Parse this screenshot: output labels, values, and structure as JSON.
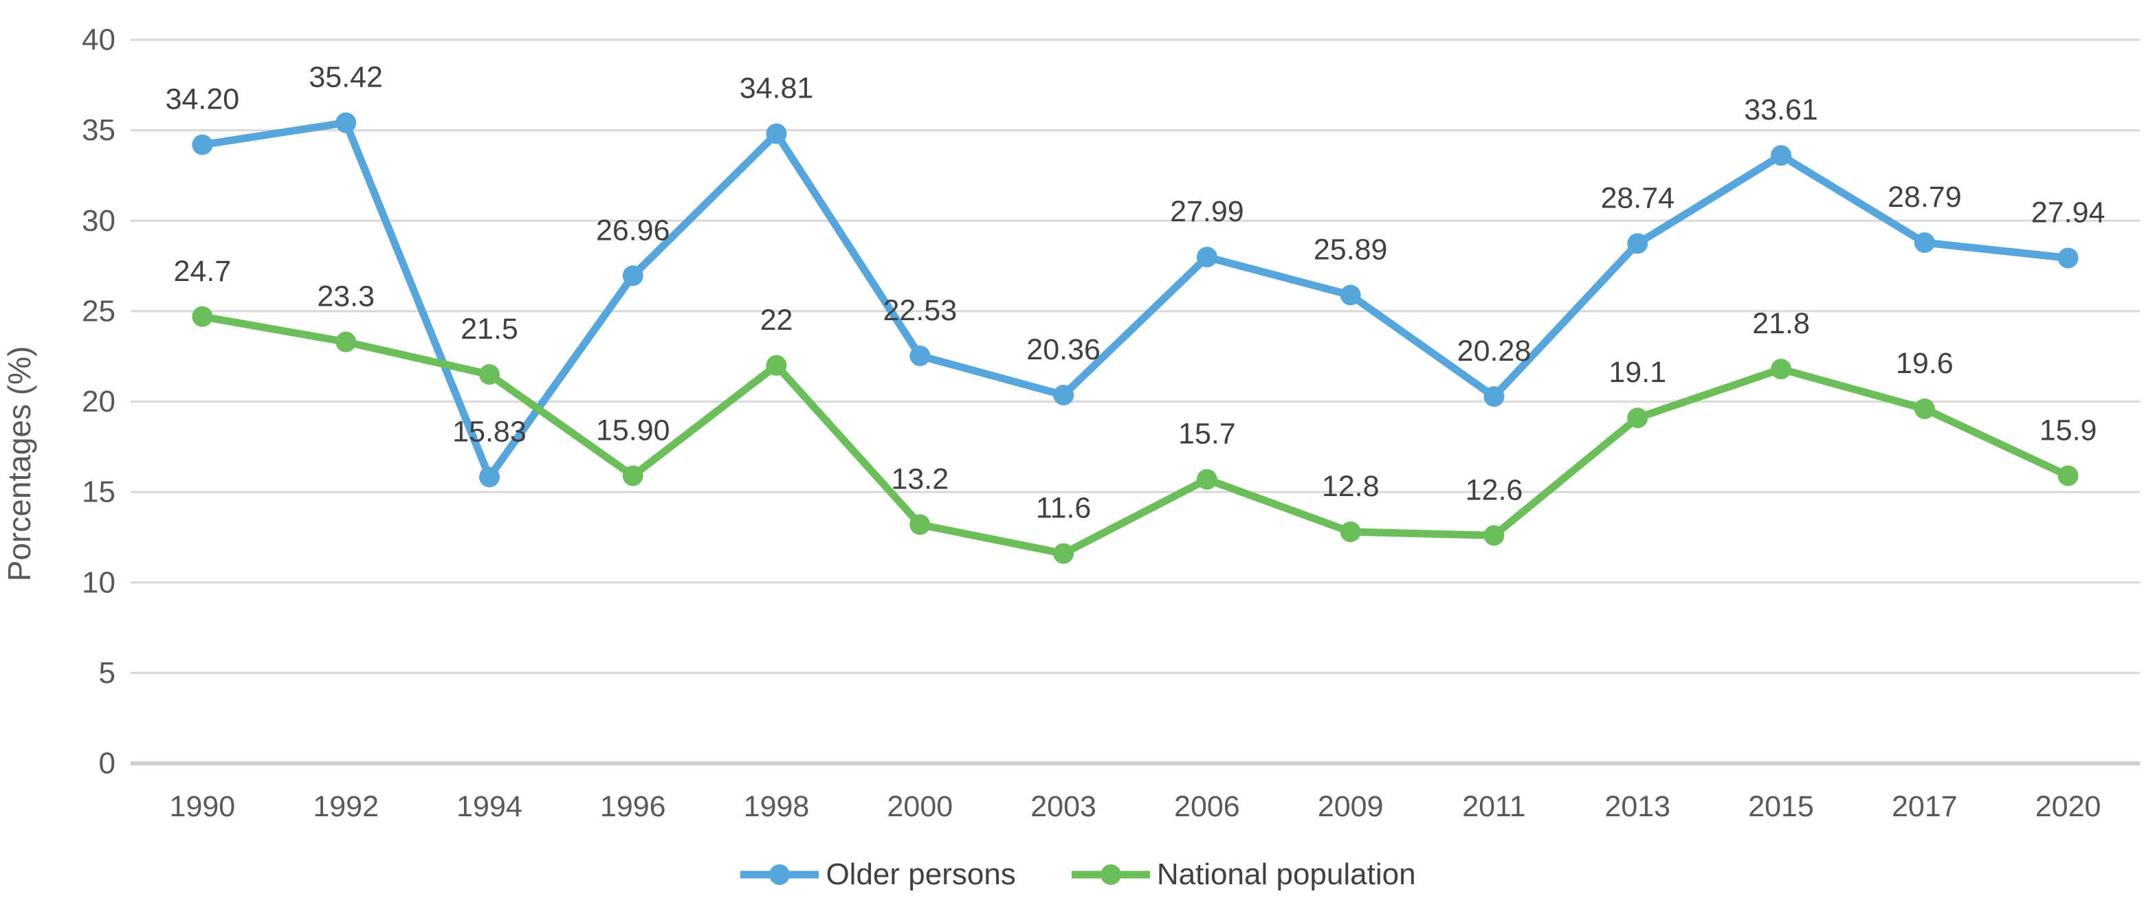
{
  "chart_data": {
    "type": "line",
    "title": "",
    "xlabel": "",
    "ylabel": "Porcentages (%)",
    "ylim": [
      0,
      40
    ],
    "ytick_step": 5,
    "yticks": [
      "40",
      "35",
      "30",
      "25",
      "20",
      "15",
      "10",
      "5",
      "0"
    ],
    "grid": true,
    "legend_position": "bottom",
    "categories": [
      "1990",
      "1992",
      "1994",
      "1996",
      "1998",
      "2000",
      "2003",
      "2006",
      "2009",
      "2011",
      "2013",
      "2015",
      "2017",
      "2020"
    ],
    "series": [
      {
        "name": "Older persons",
        "color": "#56A5DC",
        "values": [
          34.2,
          35.42,
          15.83,
          26.96,
          34.81,
          22.53,
          20.36,
          27.99,
          25.89,
          20.28,
          28.74,
          33.61,
          28.79,
          27.94
        ],
        "labels": [
          "34.20",
          "35.42",
          "15.83",
          "26.96",
          "34.81",
          "22.53",
          "20.36",
          "27.99",
          "25.89",
          "20.28",
          "28.74",
          "33.61",
          "28.79",
          "27.94"
        ]
      },
      {
        "name": "National population",
        "color": "#6CBE5B",
        "values": [
          24.7,
          23.3,
          21.5,
          15.9,
          22,
          13.2,
          11.6,
          15.7,
          12.8,
          12.6,
          19.1,
          21.8,
          19.6,
          15.9
        ],
        "labels": [
          "24.7",
          "23.3",
          "21.5",
          "15.90",
          "22",
          "13.2",
          "11.6",
          "15.7",
          "12.8",
          "12.6",
          "19.1",
          "21.8",
          "19.6",
          "15.9"
        ]
      }
    ]
  },
  "colors": {
    "background": "#FFFFFF",
    "gridline": "#D9D9D9",
    "axis_line": "#CFCFCF",
    "tick_text": "#595959",
    "data_label_text": "#404040",
    "legend_text": "#404040"
  }
}
